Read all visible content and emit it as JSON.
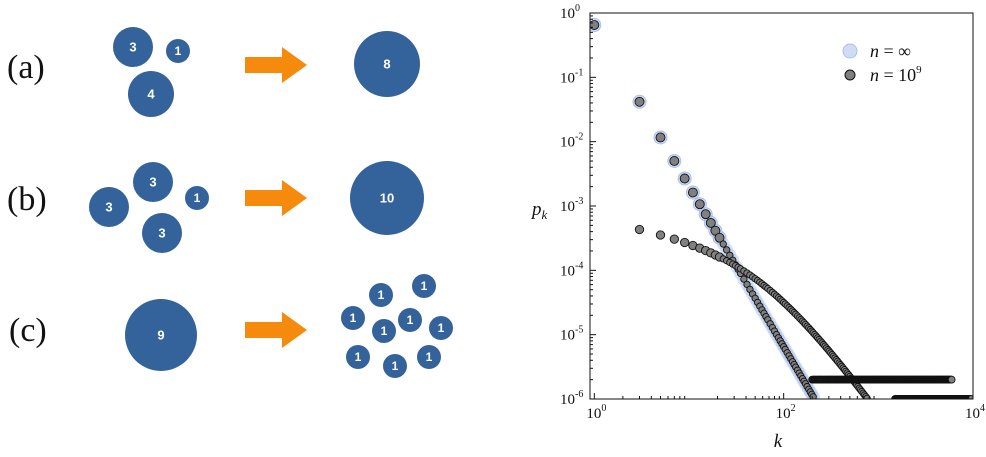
{
  "colors": {
    "circle": "#33639a",
    "arrow": "#f58a0c",
    "series_inf": "#a9bfee",
    "series_inf_edge": "#a9bfee",
    "series_fin": "#808080",
    "series_fin_edge": "#111111"
  },
  "icons": {
    "arrow": "arrow-right-icon"
  },
  "panels": [
    {
      "label": "(a)",
      "inputs": [
        "3",
        "1",
        "4"
      ],
      "outputs": [
        "8"
      ]
    },
    {
      "label": "(b)",
      "inputs": [
        "3",
        "3",
        "1",
        "3"
      ],
      "outputs": [
        "10"
      ]
    },
    {
      "label": "(c)",
      "inputs": [
        "9"
      ],
      "outputs": [
        "1",
        "1",
        "1",
        "1",
        "1",
        "1",
        "1",
        "1",
        "1"
      ]
    }
  ],
  "chart_data": {
    "type": "scatter",
    "xscale": "log",
    "yscale": "log",
    "xlim": [
      0.9,
      10000
    ],
    "ylim": [
      1e-06,
      1
    ],
    "xlabel": "k",
    "ylabel": "p_k",
    "ylabel_base": "p",
    "ylabel_sub": "k",
    "xticks": [
      {
        "base": "10",
        "exp": "0",
        "value": 1
      },
      {
        "base": "10",
        "exp": "2",
        "value": 100
      },
      {
        "base": "10",
        "exp": "4",
        "value": 10000
      }
    ],
    "yticks": [
      {
        "base": "10",
        "exp": "0",
        "value": 1
      },
      {
        "base": "10",
        "exp": "-1",
        "value": 0.1
      },
      {
        "base": "10",
        "exp": "-2",
        "value": 0.01
      },
      {
        "base": "10",
        "exp": "-3",
        "value": 0.001
      },
      {
        "base": "10",
        "exp": "-4",
        "value": 0.0001
      },
      {
        "base": "10",
        "exp": "-5",
        "value": 1e-05
      },
      {
        "base": "10",
        "exp": "-6",
        "value": 1e-06
      }
    ],
    "legend_position": "top-right",
    "series": [
      {
        "name": "n = ∞",
        "name_lhs": "n",
        "name_rhs": "∞",
        "key": "inf",
        "marker": "circle",
        "law": {
          "k_min": 1,
          "k_max": 7000,
          "p_at_1": 0.65,
          "exponent": -2.5,
          "powers_of_two": [
            1,
            3,
            5,
            7,
            9,
            11,
            13,
            15,
            17,
            19,
            21
          ]
        }
      },
      {
        "name": "n = 10^9",
        "name_lhs": "n",
        "name_rhs": "10",
        "name_exp": "9",
        "key": "fin",
        "marker": "circle",
        "upper_branch": {
          "k_min": 1,
          "k_max": 1200,
          "p_at_1": 0.65,
          "exponent": -2.5
        },
        "lower_branch": {
          "k_min": 3,
          "k_max": 1200,
          "p_at_3": 0.00047,
          "knee_k": 60,
          "tail_exponent": -2.0
        },
        "floor_levels": [
          {
            "p": 2e-06,
            "k_from": 200,
            "k_to": 6000
          },
          {
            "p": 1e-06,
            "k_from": 1500,
            "k_to": 9500
          }
        ]
      }
    ]
  }
}
